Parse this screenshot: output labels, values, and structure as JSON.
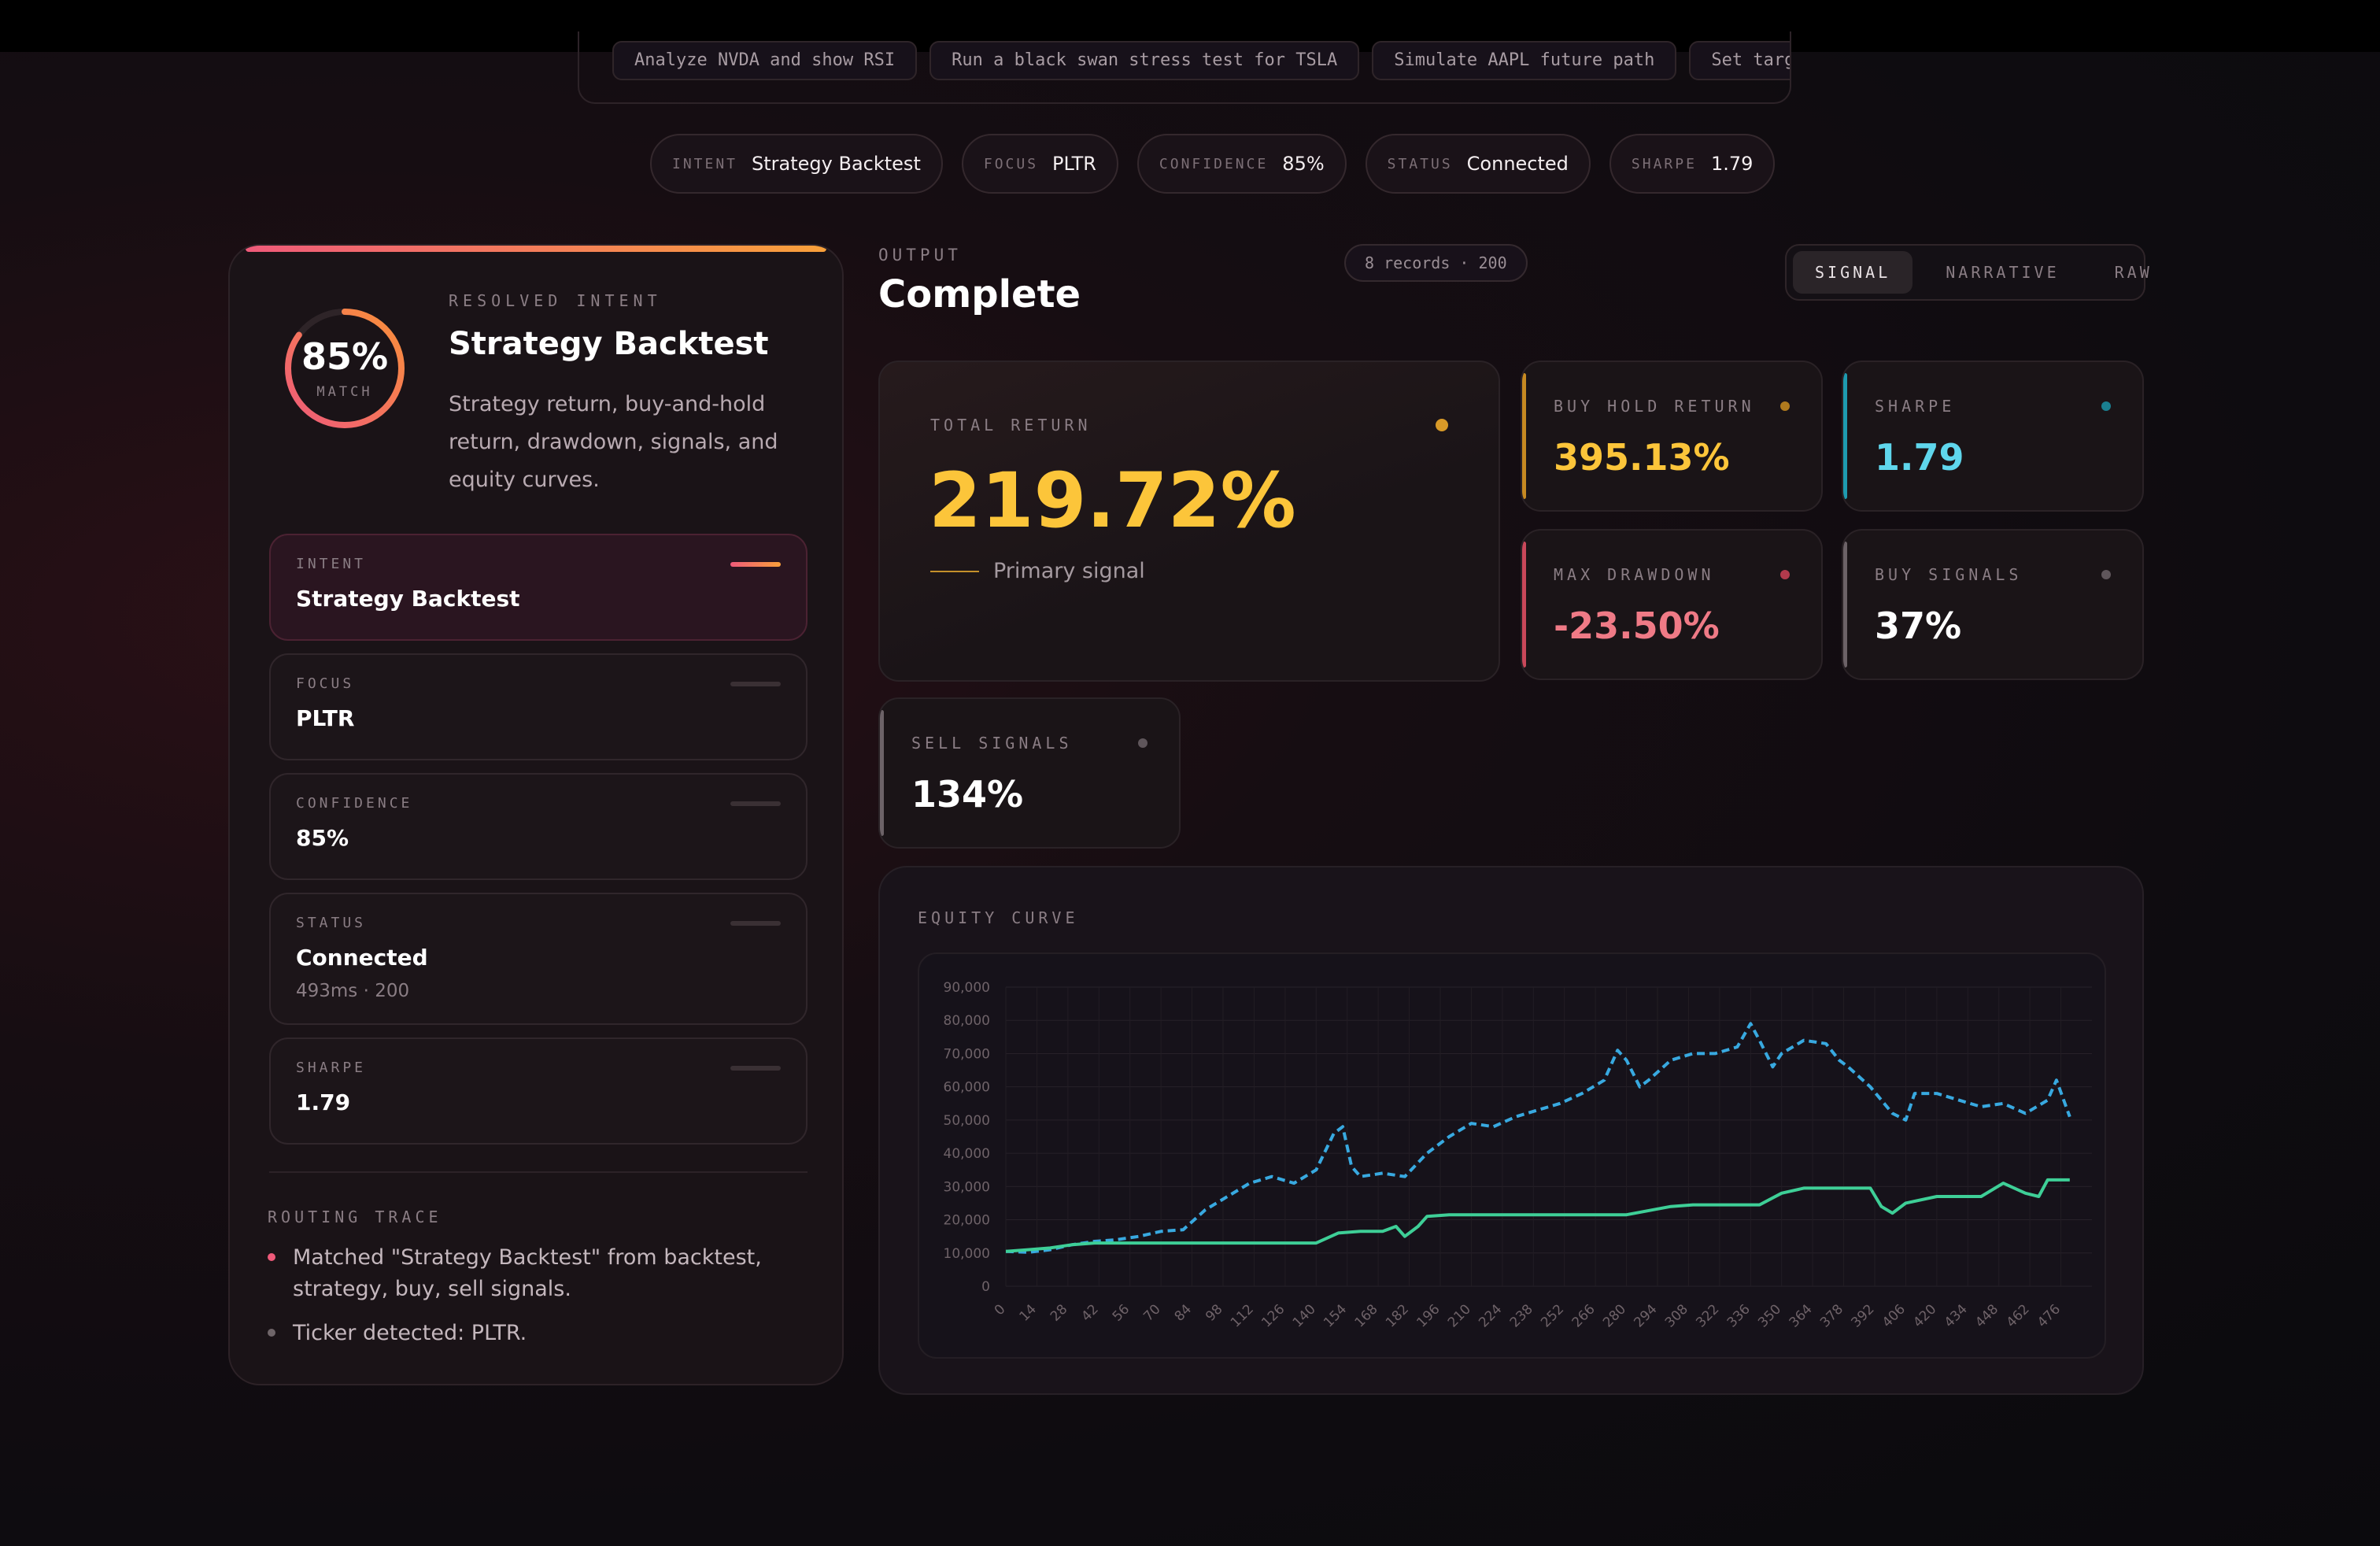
{
  "suggestions": [
    "Analyze NVDA and show RSI",
    "Run a black swan stress test for TSLA",
    "Simulate AAPL future path",
    "Set targe"
  ],
  "pills": [
    {
      "key": "INTENT",
      "value": "Strategy Backtest"
    },
    {
      "key": "FOCUS",
      "value": "PLTR"
    },
    {
      "key": "CONFIDENCE",
      "value": "85%"
    },
    {
      "key": "STATUS",
      "value": "Connected"
    },
    {
      "key": "SHARPE",
      "value": "1.79"
    }
  ],
  "resolved": {
    "match_value": "85%",
    "match_fraction": 0.85,
    "match_label": "MATCH",
    "label": "RESOLVED INTENT",
    "title": "Strategy Backtest",
    "description": "Strategy return, buy-and-hold return, drawdown, signals, and equity curves."
  },
  "fields": [
    {
      "key": "INTENT",
      "value": "Strategy Backtest",
      "sub": ""
    },
    {
      "key": "FOCUS",
      "value": "PLTR",
      "sub": ""
    },
    {
      "key": "CONFIDENCE",
      "value": "85%",
      "sub": ""
    },
    {
      "key": "STATUS",
      "value": "Connected",
      "sub": "493ms · 200"
    },
    {
      "key": "SHARPE",
      "value": "1.79",
      "sub": ""
    }
  ],
  "routing": {
    "label": "ROUTING TRACE",
    "items": [
      "Matched \"Strategy Backtest\" from backtest, strategy, buy, sell signals.",
      "Ticker detected: PLTR."
    ]
  },
  "output": {
    "label": "OUTPUT",
    "title": "Complete",
    "records": "8 records · 200",
    "tabs": [
      "SIGNAL",
      "NARRATIVE",
      "RAW"
    ]
  },
  "metrics": {
    "total_return": {
      "label": "TOTAL RETURN",
      "value": "219.72%",
      "note": "Primary signal"
    },
    "buy_hold": {
      "label": "BUY HOLD RETURN",
      "value": "395.13%"
    },
    "sharpe": {
      "label": "SHARPE",
      "value": "1.79"
    },
    "max_drawdown": {
      "label": "MAX DRAWDOWN",
      "value": "-23.50%"
    },
    "buy_signals": {
      "label": "BUY SIGNALS",
      "value": "37%"
    },
    "sell_signals": {
      "label": "SELL SIGNALS",
      "value": "134%"
    }
  },
  "colors": {
    "gold": "#fcc53a",
    "cyan": "#5fd6ec",
    "red": "#ef7a86",
    "strategy_line": "#3ecf97",
    "buyhold_line": "#38a9e0"
  },
  "chart_data": {
    "type": "line",
    "title": "EQUITY CURVE",
    "ylim": [
      0,
      90000
    ],
    "yticks": [
      "90,000",
      "80,000",
      "70,000",
      "60,000",
      "50,000",
      "40,000",
      "30,000",
      "20,000",
      "10,000",
      "0"
    ],
    "xlim": [
      0,
      490
    ],
    "xticks": [
      0,
      14,
      28,
      42,
      56,
      70,
      84,
      98,
      112,
      126,
      140,
      154,
      168,
      182,
      196,
      210,
      224,
      238,
      252,
      266,
      280,
      294,
      308,
      322,
      336,
      350,
      364,
      378,
      392,
      406,
      420,
      434,
      448,
      462,
      476
    ],
    "grid": true,
    "series": [
      {
        "style": "dashed",
        "x": [
          0,
          10,
          20,
          30,
          40,
          50,
          60,
          70,
          80,
          90,
          100,
          110,
          120,
          130,
          140,
          148,
          152,
          156,
          160,
          170,
          180,
          190,
          200,
          210,
          220,
          230,
          240,
          250,
          260,
          270,
          276,
          280,
          286,
          290,
          300,
          310,
          320,
          330,
          336,
          340,
          346,
          350,
          360,
          370,
          376,
          380,
          390,
          400,
          406,
          410,
          420,
          430,
          440,
          450,
          460,
          470,
          474,
          480
        ],
        "y": [
          10500,
          10200,
          11000,
          12500,
          13500,
          14000,
          15000,
          16500,
          17000,
          23000,
          27000,
          31000,
          33000,
          31000,
          35000,
          46000,
          48000,
          36000,
          33000,
          34000,
          33000,
          40000,
          45000,
          49000,
          48000,
          51000,
          53000,
          55000,
          58000,
          62000,
          71000,
          68000,
          60000,
          62000,
          68000,
          70000,
          70000,
          72000,
          79000,
          74000,
          66000,
          70000,
          74000,
          73000,
          68000,
          66000,
          60000,
          52000,
          50000,
          58000,
          58000,
          56000,
          54000,
          55000,
          52000,
          56000,
          62000,
          51000
        ]
      },
      {
        "style": "solid",
        "x": [
          0,
          10,
          20,
          30,
          40,
          60,
          80,
          100,
          120,
          140,
          150,
          160,
          170,
          176,
          180,
          186,
          190,
          200,
          220,
          240,
          260,
          280,
          300,
          310,
          320,
          340,
          350,
          360,
          380,
          390,
          395,
          400,
          406,
          420,
          440,
          450,
          460,
          466,
          470,
          480
        ],
        "y": [
          10500,
          11000,
          11500,
          12500,
          13000,
          13000,
          13000,
          13000,
          13000,
          13000,
          16000,
          16500,
          16500,
          18000,
          15000,
          18000,
          21000,
          21500,
          21500,
          21500,
          21500,
          21500,
          24000,
          24500,
          24500,
          24500,
          28000,
          29500,
          29500,
          29500,
          24000,
          22000,
          25000,
          27000,
          27000,
          31000,
          28000,
          27000,
          32000,
          32000
        ]
      }
    ]
  }
}
